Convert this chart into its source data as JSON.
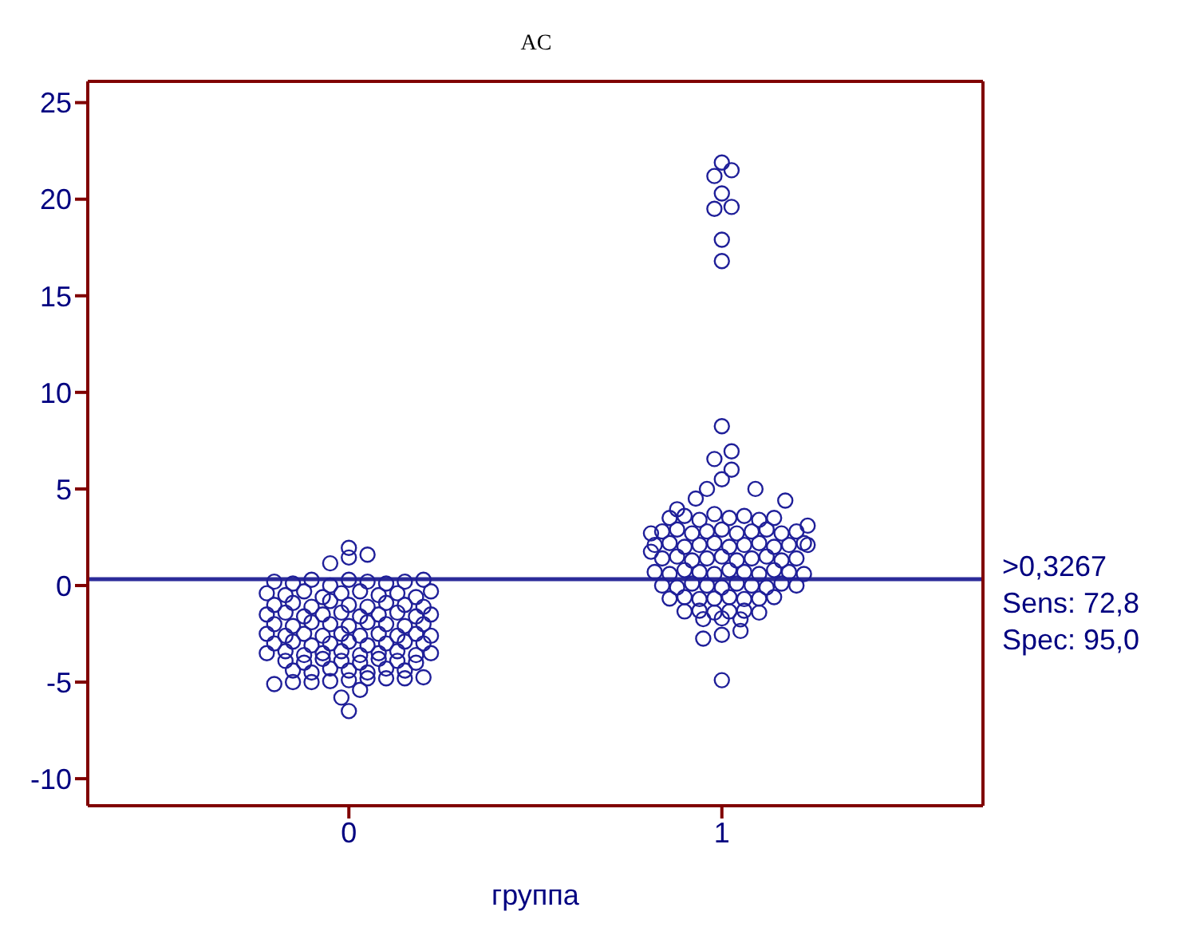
{
  "chart_data": {
    "type": "scatter",
    "title": "AC",
    "xlabel": "группа",
    "marker": "circle",
    "xlim": [
      -0.7,
      1.7
    ],
    "xticks": [
      0,
      1
    ],
    "ylim": [
      -11.4,
      26.1
    ],
    "yticks": [
      -10,
      -5,
      0,
      5,
      10,
      15,
      20,
      25
    ],
    "ref_lines": [
      {
        "axis": "y",
        "value": 0.3267,
        "label": ">0,3267\nSens: 72,8\nSpec: 95,0",
        "color": "#2b2b99"
      }
    ],
    "series": [
      {
        "color": "#1f1f99",
        "x": [
          0,
          0.05,
          -0.05,
          0,
          -0.2,
          -0.15,
          -0.1,
          -0.05,
          0,
          0.05,
          0.1,
          0.15,
          0.2,
          -0.22,
          -0.17,
          -0.12,
          -0.07,
          -0.02,
          0.03,
          0.08,
          0.13,
          0.18,
          0.22,
          -0.2,
          -0.15,
          -0.1,
          -0.05,
          0,
          0.05,
          0.1,
          0.15,
          0.2,
          -0.22,
          -0.17,
          -0.12,
          -0.07,
          -0.02,
          0.03,
          0.08,
          0.13,
          0.18,
          0.22,
          -0.2,
          -0.15,
          -0.1,
          -0.05,
          0,
          0.05,
          0.1,
          0.15,
          0.2,
          -0.22,
          -0.17,
          -0.12,
          -0.07,
          -0.02,
          0.03,
          0.08,
          0.13,
          0.18,
          0.22,
          -0.2,
          -0.15,
          -0.1,
          -0.05,
          0,
          0.05,
          0.1,
          0.15,
          0.2,
          -0.22,
          -0.17,
          -0.12,
          -0.07,
          -0.02,
          0.03,
          0.08,
          0.13,
          0.18,
          0.22,
          -0.17,
          -0.12,
          -0.07,
          -0.02,
          0.03,
          0.08,
          0.13,
          0.18,
          -0.15,
          -0.1,
          -0.05,
          0,
          0.05,
          0.1,
          0.15,
          0,
          -0.02,
          0.03,
          -0.2,
          -0.15,
          -0.1,
          -0.05,
          0,
          0.05,
          0.1,
          0.15,
          0.2
        ],
        "values": [
          1.95,
          1.6,
          1.15,
          1.45,
          0.2,
          0.1,
          0.3,
          0,
          0.3,
          0.2,
          0.1,
          0.2,
          0.3,
          -0.4,
          -0.5,
          -0.3,
          -0.6,
          -0.4,
          -0.3,
          -0.5,
          -0.4,
          -0.6,
          -0.3,
          -1,
          -0.9,
          -1.1,
          -0.8,
          -1,
          -1.1,
          -0.9,
          -1,
          -1.1,
          -1.5,
          -1.4,
          -1.6,
          -1.5,
          -1.4,
          -1.6,
          -1.5,
          -1.4,
          -1.6,
          -1.5,
          -2,
          -2.1,
          -1.9,
          -2,
          -2.1,
          -1.9,
          -2,
          -2.1,
          -2,
          -2.5,
          -2.6,
          -2.5,
          -2.6,
          -2.5,
          -2.6,
          -2.5,
          -2.6,
          -2.5,
          -2.6,
          -3,
          -2.9,
          -3.1,
          -3,
          -2.9,
          -3.1,
          -3,
          -2.9,
          -3,
          -3.5,
          -3.4,
          -3.6,
          -3.5,
          -3.4,
          -3.6,
          -3.5,
          -3.4,
          -3.6,
          -3.5,
          -3.9,
          -4,
          -3.8,
          -3.9,
          -4,
          -3.8,
          -3.9,
          -4,
          -4.4,
          -4.5,
          -4.3,
          -4.4,
          -4.5,
          -4.3,
          -4.4,
          -6.5,
          -5.8,
          -5.4,
          -5.1,
          -5,
          -5,
          -4.95,
          -4.9,
          -4.8,
          -4.8,
          -4.8,
          -4.75
        ]
      },
      {
        "color": "#1f1f99",
        "x": [
          1,
          1.026,
          0.98,
          1,
          0.98,
          1.026,
          1,
          1,
          1,
          1.026,
          0.98,
          1.026,
          1,
          0.96,
          1.09,
          0.93,
          0.88,
          1.17,
          1.23,
          0.81,
          0.81,
          1.23,
          0.86,
          0.9,
          0.94,
          0.98,
          1.02,
          1.06,
          1.1,
          1.14,
          0.84,
          0.88,
          0.92,
          0.96,
          1,
          1.04,
          1.08,
          1.12,
          1.16,
          1.2,
          0.82,
          0.86,
          0.9,
          0.94,
          0.98,
          1.02,
          1.06,
          1.1,
          1.14,
          1.18,
          1.22,
          0.84,
          0.88,
          0.92,
          0.96,
          1,
          1.04,
          1.08,
          1.12,
          1.16,
          1.2,
          0.82,
          0.86,
          0.9,
          0.94,
          0.98,
          1.02,
          1.06,
          1.1,
          1.14,
          1.18,
          1.22,
          0.84,
          0.88,
          0.92,
          0.96,
          1,
          1.04,
          1.08,
          1.12,
          1.16,
          1.2,
          0.86,
          0.9,
          0.94,
          0.98,
          1.02,
          1.06,
          1.1,
          1.14,
          0.9,
          0.94,
          0.98,
          1.02,
          1.06,
          1.1,
          0.95,
          1,
          1.05,
          0.95,
          1,
          1.05,
          1
        ],
        "values": [
          21.9,
          21.5,
          21.2,
          20.3,
          19.5,
          19.6,
          17.9,
          16.8,
          8.25,
          6.95,
          6.55,
          6,
          5.5,
          5,
          5,
          4.5,
          3.95,
          4.4,
          3.1,
          2.7,
          1.75,
          2.1,
          3.5,
          3.6,
          3.4,
          3.7,
          3.5,
          3.6,
          3.4,
          3.5,
          2.8,
          2.9,
          2.7,
          2.8,
          2.9,
          2.7,
          2.8,
          2.9,
          2.7,
          2.8,
          2.1,
          2.2,
          2,
          2.1,
          2.2,
          2,
          2.1,
          2.2,
          2,
          2.1,
          2.2,
          1.4,
          1.5,
          1.3,
          1.4,
          1.5,
          1.3,
          1.4,
          1.5,
          1.3,
          1.4,
          0.7,
          0.6,
          0.8,
          0.7,
          0.6,
          0.8,
          0.7,
          0.6,
          0.8,
          0.7,
          0.6,
          0,
          -0.1,
          0.1,
          0,
          -0.1,
          0.1,
          0,
          -0.1,
          0.1,
          0,
          -0.67,
          -0.6,
          -0.7,
          -0.67,
          -0.6,
          -0.7,
          -0.67,
          -0.6,
          -1.34,
          -1.3,
          -1.4,
          -1.34,
          -1.3,
          -1.4,
          -1.74,
          -1.7,
          -1.75,
          -2.75,
          -2.55,
          -2.35,
          -4.9
        ]
      }
    ]
  }
}
